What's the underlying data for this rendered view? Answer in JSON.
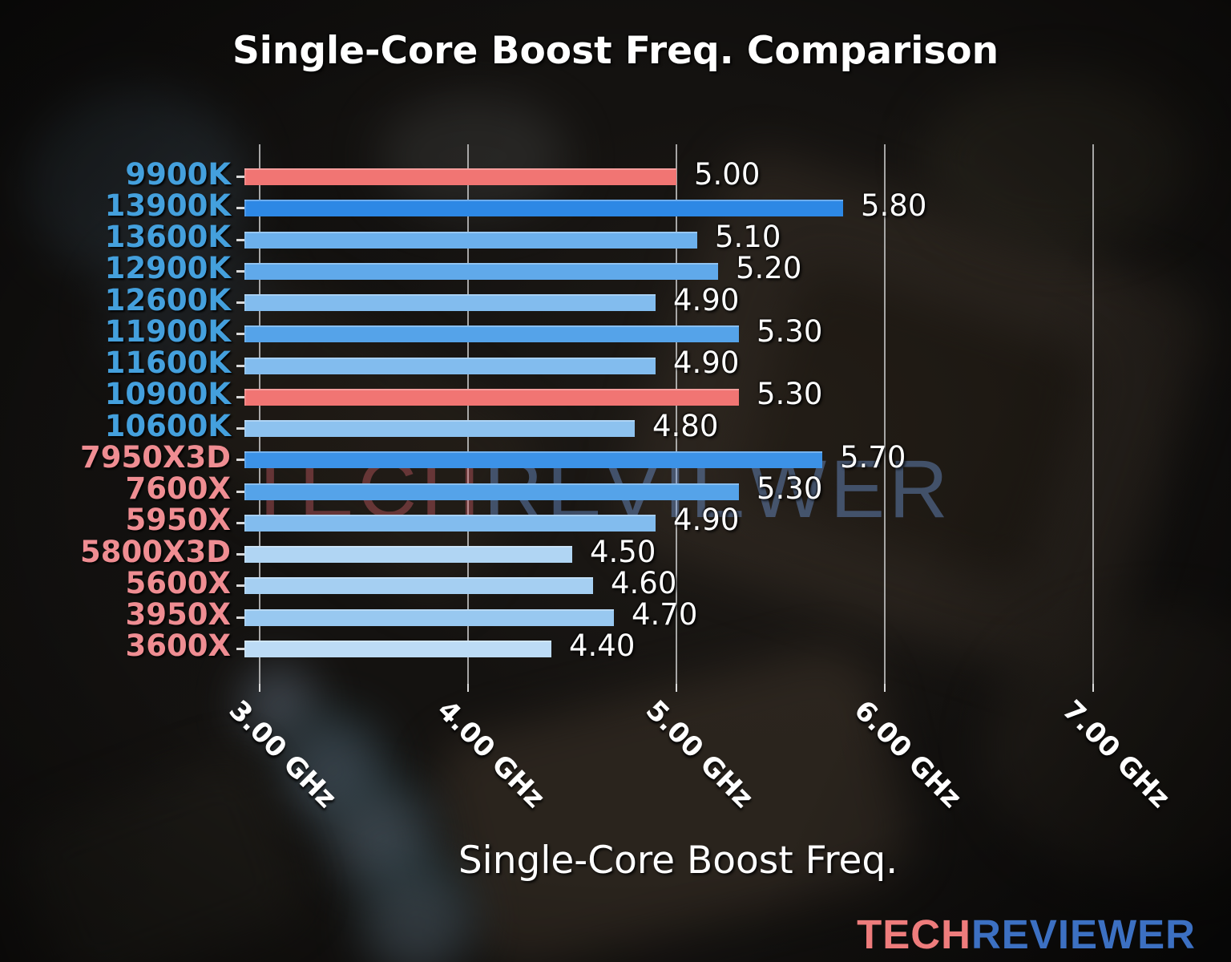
{
  "title": "Single-Core Boost Freq. Comparison",
  "watermark": {
    "tech": "TECH",
    "reviewer": "REVIEWER",
    "tech_color": "rgba(210,95,105,0.40)",
    "reviewer_color": "rgba(115,158,225,0.42)"
  },
  "logo": {
    "tech": "TECH",
    "reviewer": "REVIEWER",
    "tech_color": "#ee7c7c",
    "reviewer_color": "#3c70c2"
  },
  "palette": {
    "intel_label": "#44a0dd",
    "amd_label": "#ef8d92",
    "highlight_bar": "#f17573",
    "grid_color": "#bfbfbf",
    "tick_color": "#d9d9d9",
    "value_text": "#ffffff",
    "axis_text": "#ffffff"
  },
  "chart_data": {
    "type": "bar",
    "orientation": "horizontal",
    "title": "Single-Core Boost Freq. Comparison",
    "xlabel": "Single-Core Boost Freq.",
    "x_axis_unit": "GHz",
    "xlim": [
      2.93,
      7.45
    ],
    "grid": true,
    "legend": "none",
    "x_ticks": [
      {
        "value": 3.0,
        "label": "3.00 GHz"
      },
      {
        "value": 4.0,
        "label": "4.00 GHz"
      },
      {
        "value": 5.0,
        "label": "5.00 GHz"
      },
      {
        "value": 6.0,
        "label": "6.00 GHz"
      },
      {
        "value": 7.0,
        "label": "7.00 GHz"
      }
    ],
    "bars": [
      {
        "category": "9900K",
        "vendor": "intel",
        "value": 5.0,
        "label": "5.00",
        "color": "#f17573",
        "highlighted": true
      },
      {
        "category": "13900K",
        "vendor": "intel",
        "value": 5.8,
        "label": "5.80",
        "color": "#2d88e5",
        "highlighted": false
      },
      {
        "category": "13600K",
        "vendor": "intel",
        "value": 5.1,
        "label": "5.10",
        "color": "#6cb0ec",
        "highlighted": false
      },
      {
        "category": "12900K",
        "vendor": "intel",
        "value": 5.2,
        "label": "5.20",
        "color": "#60a9ea",
        "highlighted": false
      },
      {
        "category": "12600K",
        "vendor": "intel",
        "value": 4.9,
        "label": "4.90",
        "color": "#82bcee",
        "highlighted": false
      },
      {
        "category": "11900K",
        "vendor": "intel",
        "value": 5.3,
        "label": "5.30",
        "color": "#55a3e9",
        "highlighted": false
      },
      {
        "category": "11600K",
        "vendor": "intel",
        "value": 4.9,
        "label": "4.90",
        "color": "#82bcee",
        "highlighted": false
      },
      {
        "category": "10900K",
        "vendor": "intel",
        "value": 5.3,
        "label": "5.30",
        "color": "#f17573",
        "highlighted": true
      },
      {
        "category": "10600K",
        "vendor": "intel",
        "value": 4.8,
        "label": "4.80",
        "color": "#8dc2ef",
        "highlighted": false
      },
      {
        "category": "7950X3D",
        "vendor": "amd",
        "value": 5.7,
        "label": "5.70",
        "color": "#3c92e7",
        "highlighted": false
      },
      {
        "category": "7600X",
        "vendor": "amd",
        "value": 5.3,
        "label": "5.30",
        "color": "#55a3e9",
        "highlighted": false
      },
      {
        "category": "5950X",
        "vendor": "amd",
        "value": 4.9,
        "label": "4.90",
        "color": "#82bcee",
        "highlighted": false
      },
      {
        "category": "5800X3D",
        "vendor": "amd",
        "value": 4.5,
        "label": "4.50",
        "color": "#b0d5f3",
        "highlighted": false
      },
      {
        "category": "5600X",
        "vendor": "amd",
        "value": 4.6,
        "label": "4.60",
        "color": "#a5cff2",
        "highlighted": false
      },
      {
        "category": "3950X",
        "vendor": "amd",
        "value": 4.7,
        "label": "4.70",
        "color": "#98c8f0",
        "highlighted": false
      },
      {
        "category": "3600X",
        "vendor": "amd",
        "value": 4.4,
        "label": "4.40",
        "color": "#bcdbf5",
        "highlighted": false
      }
    ]
  }
}
